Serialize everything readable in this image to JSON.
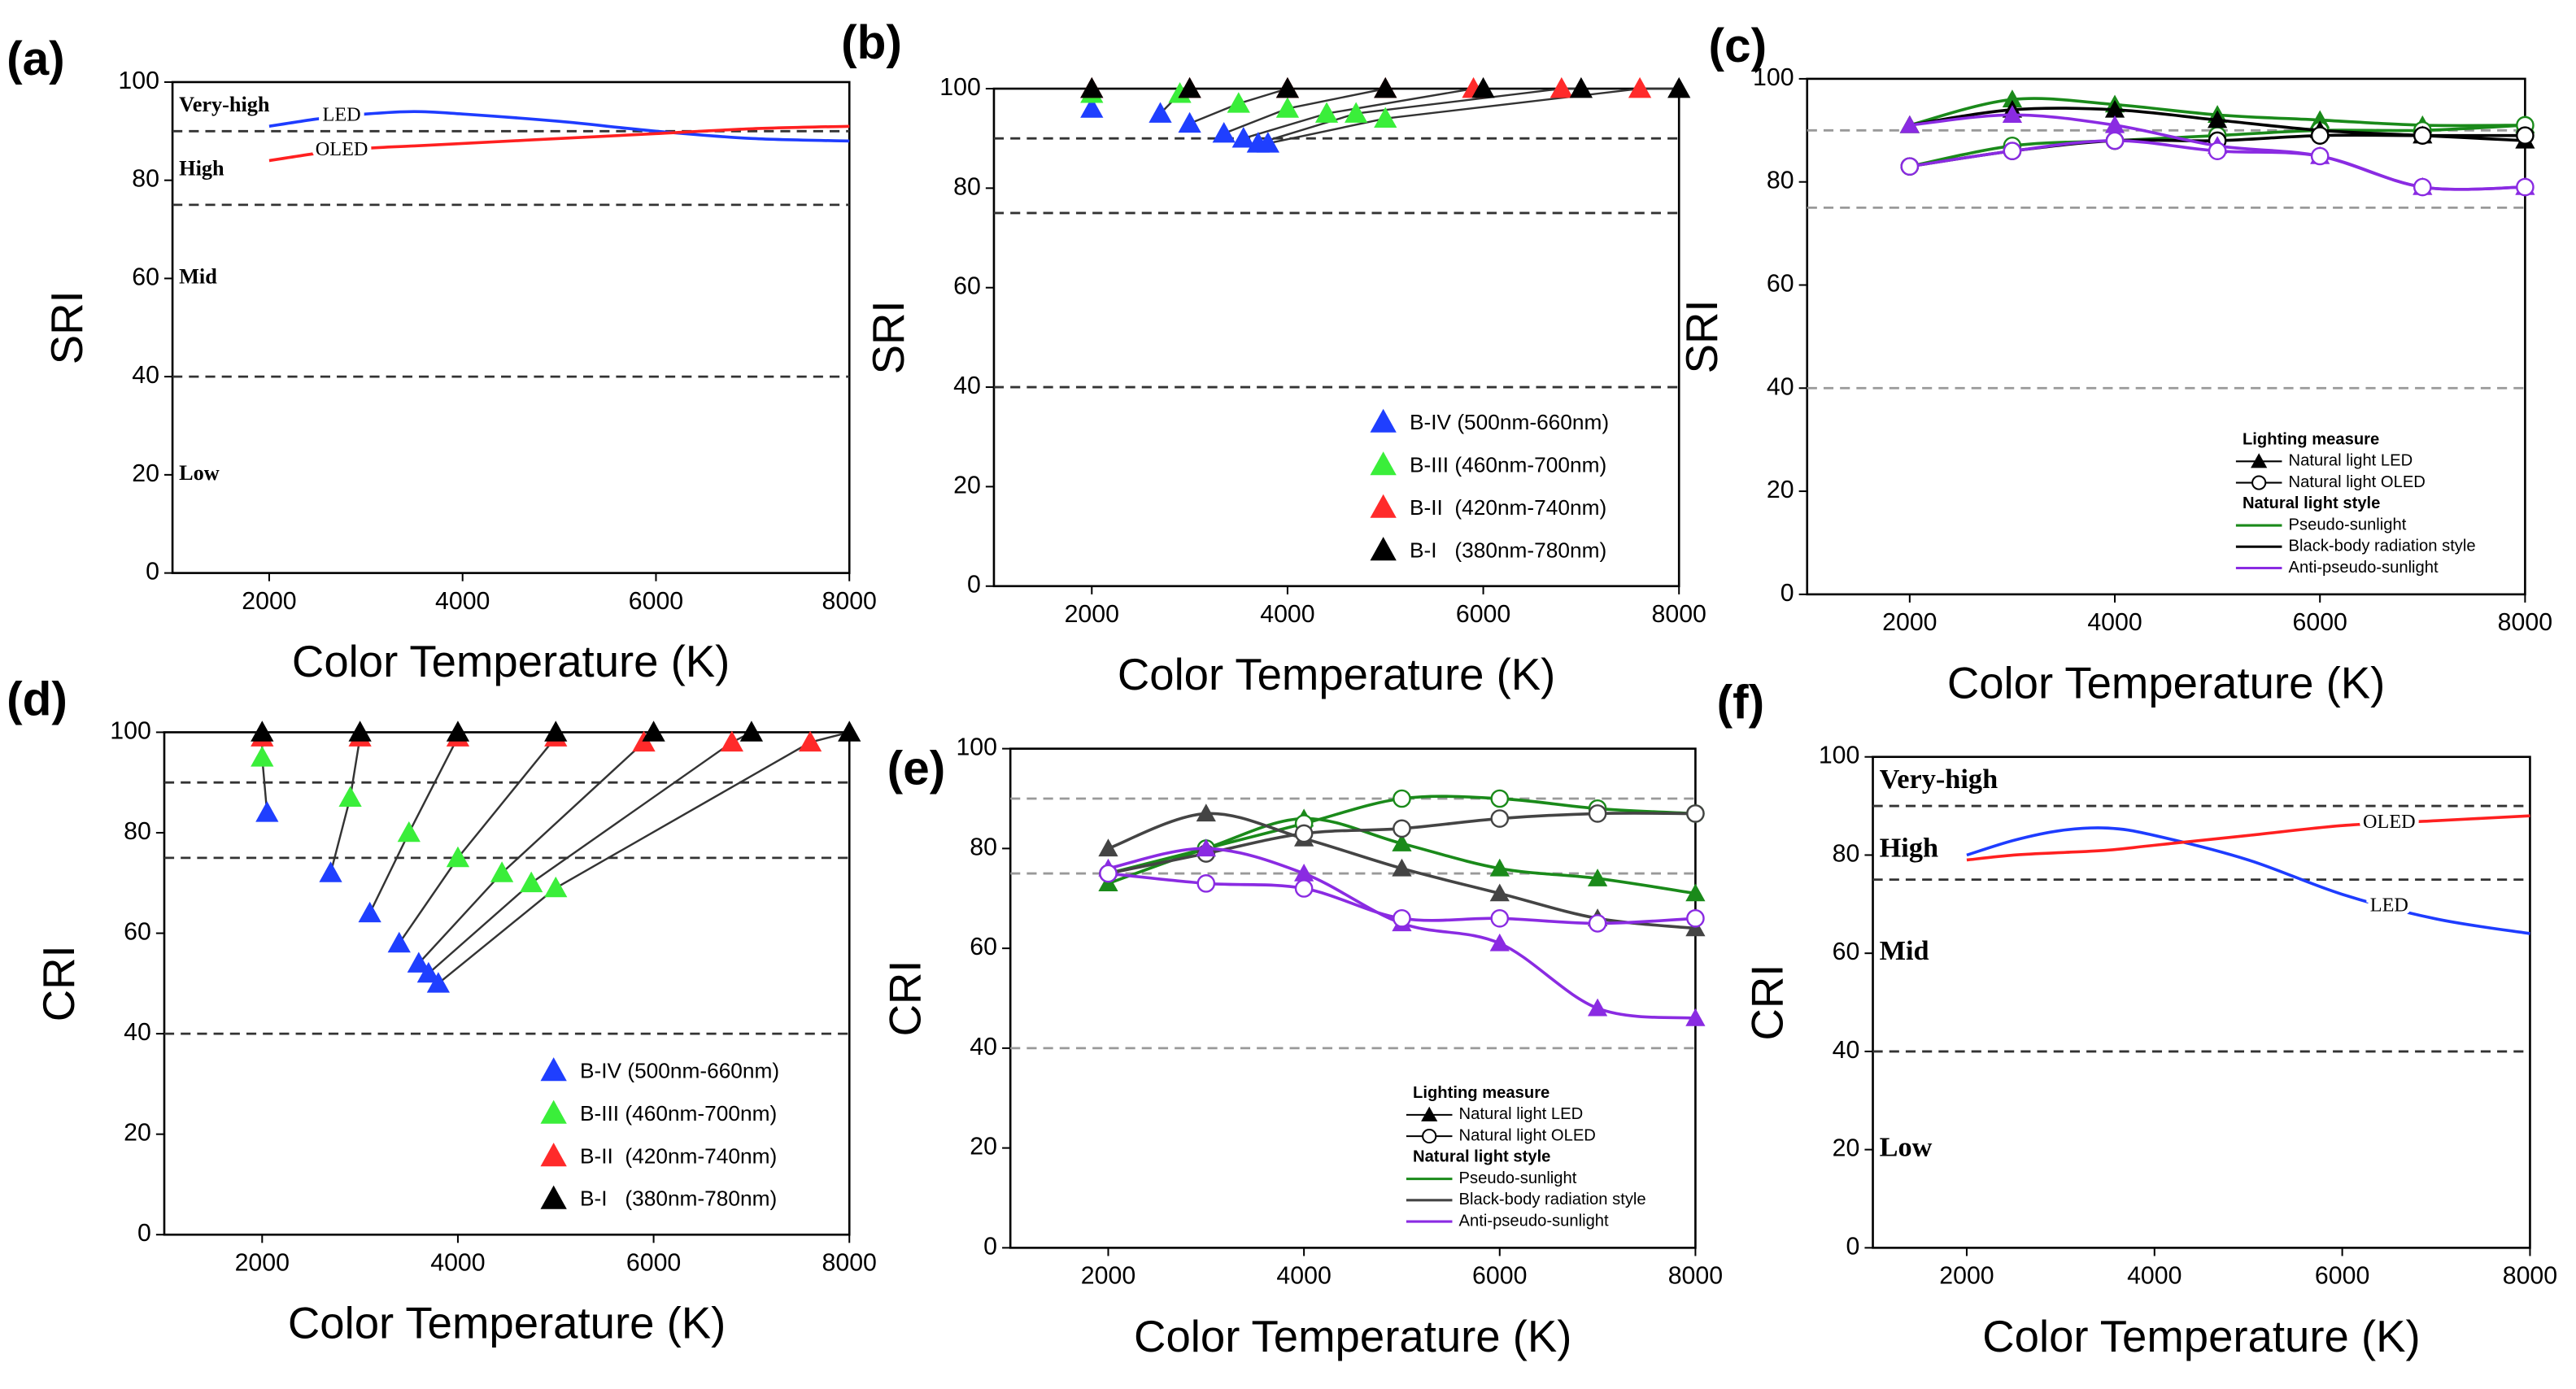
{
  "chart_data": [
    {
      "type": "line",
      "label": "(a)",
      "xlabel": "Color Temperature (K)",
      "ylabel": "SRI",
      "xlim": [
        1000,
        8000
      ],
      "xticks": [
        2000,
        4000,
        6000,
        8000
      ],
      "ylim": [
        0,
        100
      ],
      "yticks": [
        0,
        20,
        40,
        60,
        80,
        100
      ],
      "reference_lines": [
        90,
        75,
        40
      ],
      "reference_color": "#333333",
      "zone_labels": [
        "Very-high",
        "High",
        "Mid",
        "Low"
      ],
      "series": [
        {
          "name": "LED",
          "color": "#1e3cff",
          "x": [
            2000,
            2500,
            3000,
            3500,
            4000,
            5000,
            6000,
            7000,
            8000
          ],
          "values": [
            91,
            92.5,
            93.5,
            94,
            93.5,
            92,
            90,
            88.5,
            88
          ]
        },
        {
          "name": "OLED",
          "color": "#ff2020",
          "x": [
            2000,
            2500,
            3000,
            3500,
            4000,
            5000,
            6000,
            7000,
            8000
          ],
          "values": [
            84,
            85.5,
            86.5,
            87,
            87.5,
            88.5,
            89.5,
            90.5,
            91
          ]
        }
      ]
    },
    {
      "type": "scatter",
      "label": "(b)",
      "xlabel": "Color Temperature (K)",
      "ylabel": "SRI",
      "xlim": [
        1000,
        8000
      ],
      "xticks": [
        2000,
        4000,
        6000,
        8000
      ],
      "ylim": [
        0,
        100
      ],
      "yticks": [
        0,
        20,
        40,
        60,
        80,
        100
      ],
      "reference_lines": [
        90,
        75,
        40
      ],
      "reference_color": "#333333",
      "legend_position": "lower right",
      "series": [
        {
          "name": "B-IV (500nm-660nm)",
          "color": "#1f3fff",
          "x": [
            2000,
            2700,
            3000,
            3350,
            3550,
            3700,
            3800
          ],
          "values": [
            96,
            95,
            93,
            91,
            90,
            89,
            89
          ]
        },
        {
          "name": "B-III (460nm-700nm)",
          "color": "#3aee3a",
          "x": [
            2000,
            2900,
            3500,
            4000,
            4400,
            4700,
            5000
          ],
          "values": [
            99,
            99,
            97,
            96,
            95,
            95,
            94
          ]
        },
        {
          "name": "B-II  (420nm-740nm)",
          "color": "#ff2a2a",
          "x": [
            2000,
            3000,
            4000,
            5000,
            5900,
            6800,
            7600
          ],
          "values": [
            100,
            100,
            100,
            100,
            100,
            100,
            100
          ]
        },
        {
          "name": "B-I   (380nm-780nm)",
          "color": "#000000",
          "x": [
            2000,
            3000,
            4000,
            5000,
            6000,
            7000,
            8000
          ],
          "values": [
            100,
            100,
            100,
            100,
            100,
            100,
            100
          ]
        }
      ]
    },
    {
      "type": "line",
      "label": "(c)",
      "xlabel": "Color Temperature (K)",
      "ylabel": "SRI",
      "xlim": [
        1000,
        8000
      ],
      "xticks": [
        2000,
        4000,
        6000,
        8000
      ],
      "ylim": [
        0,
        100
      ],
      "yticks": [
        0,
        20,
        40,
        60,
        80,
        100
      ],
      "reference_lines": [
        90,
        75,
        40
      ],
      "reference_color": "#999999",
      "x": [
        2000,
        3000,
        4000,
        5000,
        6000,
        7000,
        8000
      ],
      "legend": {
        "title": "Lighting measure",
        "measures": [
          {
            "label": "Natural light LED",
            "marker": "triangle"
          },
          {
            "label": "Natural light OLED",
            "marker": "circle"
          }
        ],
        "style_title": "Natural light style",
        "styles": [
          {
            "label": "Pseudo-sunlight",
            "color": "#1a8a1a"
          },
          {
            "label": "Black-body radiation style",
            "color": "#000000"
          },
          {
            "label": "Anti-pseudo-sunlight",
            "color": "#8a2be2"
          }
        ],
        "position": "lower right"
      },
      "series": [
        {
          "style": 0,
          "measure": 0,
          "values": [
            91,
            96,
            95,
            93,
            92,
            91,
            91
          ]
        },
        {
          "style": 0,
          "measure": 1,
          "values": [
            83,
            87,
            88,
            89,
            90,
            90,
            91
          ]
        },
        {
          "style": 1,
          "measure": 0,
          "values": [
            91,
            94,
            94,
            92,
            90,
            89,
            88
          ]
        },
        {
          "style": 1,
          "measure": 1,
          "values": [
            83,
            86,
            88,
            88,
            89,
            89,
            89
          ]
        },
        {
          "style": 2,
          "measure": 0,
          "values": [
            91,
            93,
            91,
            87,
            85,
            79,
            79
          ]
        },
        {
          "style": 2,
          "measure": 1,
          "values": [
            83,
            86,
            88,
            86,
            85,
            79,
            79
          ]
        }
      ]
    },
    {
      "type": "scatter",
      "label": "(d)",
      "xlabel": "Color Temperature (K)",
      "ylabel": "CRI",
      "xlim": [
        1000,
        8000
      ],
      "xticks": [
        2000,
        4000,
        6000,
        8000
      ],
      "ylim": [
        0,
        100
      ],
      "yticks": [
        0,
        20,
        40,
        60,
        80,
        100
      ],
      "reference_lines": [
        90,
        75,
        40
      ],
      "reference_color": "#333333",
      "legend_position": "lower right",
      "series": [
        {
          "name": "B-IV (500nm-660nm)",
          "color": "#1f3fff",
          "x": [
            2050,
            2700,
            3100,
            3400,
            3600,
            3700,
            3800
          ],
          "values": [
            84,
            72,
            64,
            58,
            54,
            52,
            50
          ]
        },
        {
          "name": "B-III (460nm-700nm)",
          "color": "#3aee3a",
          "x": [
            2000,
            2900,
            3500,
            4000,
            4450,
            4750,
            5000
          ],
          "values": [
            95,
            87,
            80,
            75,
            72,
            70,
            69
          ]
        },
        {
          "name": "B-II  (420nm-740nm)",
          "color": "#ff2a2a",
          "x": [
            2000,
            3000,
            4000,
            5000,
            5900,
            6800,
            7600
          ],
          "values": [
            99,
            99,
            99,
            99,
            98,
            98,
            98
          ]
        },
        {
          "name": "B-I   (380nm-780nm)",
          "color": "#000000",
          "x": [
            2000,
            3000,
            4000,
            5000,
            6000,
            7000,
            8000
          ],
          "values": [
            100,
            100,
            100,
            100,
            100,
            100,
            100
          ]
        }
      ]
    },
    {
      "type": "line",
      "label": "(e)",
      "xlabel": "Color Temperature (K)",
      "ylabel": "CRI",
      "xlim": [
        1000,
        8000
      ],
      "xticks": [
        2000,
        4000,
        6000,
        8000
      ],
      "ylim": [
        0,
        100
      ],
      "yticks": [
        0,
        20,
        40,
        60,
        80,
        100
      ],
      "reference_lines": [
        90,
        75,
        40
      ],
      "reference_color": "#999999",
      "x": [
        2000,
        3000,
        4000,
        5000,
        6000,
        7000,
        8000
      ],
      "legend": {
        "title": "Lighting measure",
        "measures": [
          {
            "label": "Natural light LED",
            "marker": "triangle"
          },
          {
            "label": "Natural light OLED",
            "marker": "circle"
          }
        ],
        "style_title": "Natural light style",
        "styles": [
          {
            "label": "Pseudo-sunlight",
            "color": "#1a8a1a"
          },
          {
            "label": "Black-body radiation style",
            "color": "#444444"
          },
          {
            "label": "Anti-pseudo-sunlight",
            "color": "#8a2be2"
          }
        ],
        "position": "lower right"
      },
      "series": [
        {
          "style": 0,
          "measure": 0,
          "values": [
            73,
            80,
            86,
            81,
            76,
            74,
            71
          ]
        },
        {
          "style": 0,
          "measure": 1,
          "values": [
            75,
            80,
            85,
            90,
            90,
            88,
            87
          ]
        },
        {
          "style": 1,
          "measure": 0,
          "values": [
            80,
            87,
            82,
            76,
            71,
            66,
            64
          ]
        },
        {
          "style": 1,
          "measure": 1,
          "values": [
            75,
            79,
            83,
            84,
            86,
            87,
            87
          ]
        },
        {
          "style": 2,
          "measure": 0,
          "values": [
            76,
            80,
            75,
            65,
            61,
            48,
            46
          ]
        },
        {
          "style": 2,
          "measure": 1,
          "values": [
            75,
            73,
            72,
            66,
            66,
            65,
            66
          ]
        }
      ]
    },
    {
      "type": "line",
      "label": "(f)",
      "xlabel": "Color Temperature (K)",
      "ylabel": "CRI",
      "xlim": [
        1000,
        8000
      ],
      "xticks": [
        2000,
        4000,
        6000,
        8000
      ],
      "ylim": [
        0,
        100
      ],
      "yticks": [
        0,
        20,
        40,
        60,
        80,
        100
      ],
      "reference_lines": [
        90,
        75,
        40
      ],
      "reference_color": "#333333",
      "zone_labels": [
        "Very-high",
        "High",
        "Mid",
        "Low"
      ],
      "series": [
        {
          "name": "LED",
          "color": "#1e3cff",
          "x": [
            2000,
            2500,
            3000,
            3500,
            4000,
            5000,
            6000,
            7000,
            8000
          ],
          "values": [
            80,
            83,
            85,
            85.5,
            84,
            79,
            72,
            67,
            64
          ]
        },
        {
          "name": "OLED",
          "color": "#ff2020",
          "x": [
            2000,
            2500,
            3000,
            3500,
            4000,
            5000,
            6000,
            7000,
            8000
          ],
          "values": [
            79,
            80,
            80.5,
            81,
            82,
            84,
            86,
            87,
            88
          ]
        }
      ]
    }
  ]
}
